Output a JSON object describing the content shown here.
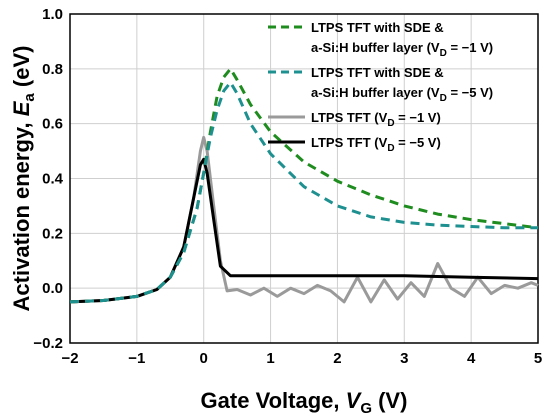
{
  "chart_data": {
    "type": "line",
    "xlabel": {
      "text": "Gate Voltage, ",
      "var": "V",
      "sub": "G",
      "unit": " (V)"
    },
    "ylabel": {
      "text": "Activation energy, ",
      "var": "E",
      "sub": "a",
      "unit": " (eV)"
    },
    "xlim": [
      -2,
      5
    ],
    "ylim": [
      -0.2,
      1.0
    ],
    "xticks": [
      -2,
      -1,
      0,
      1,
      2,
      3,
      4,
      5
    ],
    "yticks": [
      -0.2,
      0.0,
      0.2,
      0.4,
      0.6,
      0.8,
      1.0
    ],
    "xtick_labels": [
      "−2",
      "−1",
      "0",
      "1",
      "2",
      "3",
      "4",
      "5"
    ],
    "ytick_labels": [
      "−0.2",
      "0.0",
      "0.2",
      "0.4",
      "0.6",
      "0.8",
      "1.0"
    ],
    "grid": true,
    "legend_position": "top-right",
    "series": [
      {
        "legend_line1": "LTPS TFT with SDE &",
        "legend_line2": "a-Si:H buffer layer (V",
        "legend_sub": "D",
        "legend_tail": " = −1 V)",
        "color": "#1e8c1e",
        "style": "dashed",
        "x": [
          -2.0,
          -1.5,
          -1.0,
          -0.7,
          -0.5,
          -0.3,
          -0.1,
          0.0,
          0.1,
          0.2,
          0.3,
          0.4,
          0.5,
          0.7,
          1.0,
          1.5,
          2.0,
          2.5,
          3.0,
          3.5,
          4.0,
          4.5,
          5.0
        ],
        "y": [
          -0.05,
          -0.045,
          -0.03,
          -0.005,
          0.04,
          0.13,
          0.29,
          0.42,
          0.57,
          0.7,
          0.77,
          0.8,
          0.76,
          0.67,
          0.57,
          0.46,
          0.39,
          0.34,
          0.3,
          0.27,
          0.25,
          0.235,
          0.22
        ]
      },
      {
        "legend_line1": "LTPS TFT with SDE &",
        "legend_line2": "a-Si:H buffer layer (V",
        "legend_sub": "D",
        "legend_tail": " = −5 V)",
        "color": "#1e9090",
        "style": "dashed",
        "x": [
          -2.0,
          -1.5,
          -1.0,
          -0.7,
          -0.5,
          -0.3,
          -0.1,
          0.0,
          0.1,
          0.2,
          0.3,
          0.4,
          0.5,
          0.7,
          1.0,
          1.5,
          2.0,
          2.5,
          3.0,
          3.5,
          4.0,
          4.5,
          5.0
        ],
        "y": [
          -0.05,
          -0.045,
          -0.03,
          -0.005,
          0.04,
          0.13,
          0.29,
          0.42,
          0.55,
          0.65,
          0.72,
          0.75,
          0.71,
          0.6,
          0.49,
          0.37,
          0.3,
          0.26,
          0.24,
          0.23,
          0.225,
          0.22,
          0.22
        ]
      },
      {
        "legend_line1": "LTPS TFT  (V",
        "legend_sub": "D",
        "legend_tail": " = −1 V)",
        "color": "#9a9a9a",
        "style": "solid",
        "x": [
          -2.0,
          -1.5,
          -1.0,
          -0.7,
          -0.5,
          -0.3,
          -0.15,
          -0.05,
          0.0,
          0.05,
          0.15,
          0.25,
          0.35,
          0.5,
          0.7,
          0.9,
          1.1,
          1.3,
          1.5,
          1.7,
          1.9,
          2.1,
          2.3,
          2.5,
          2.7,
          2.9,
          3.1,
          3.3,
          3.5,
          3.7,
          3.9,
          4.1,
          4.3,
          4.5,
          4.7,
          4.9,
          5.0
        ],
        "y": [
          -0.05,
          -0.045,
          -0.03,
          -0.005,
          0.04,
          0.15,
          0.33,
          0.5,
          0.55,
          0.5,
          0.3,
          0.1,
          -0.01,
          -0.005,
          -0.025,
          0.0,
          -0.03,
          0.0,
          -0.02,
          0.01,
          -0.01,
          -0.05,
          0.04,
          -0.05,
          0.03,
          -0.04,
          0.02,
          -0.03,
          0.09,
          0.0,
          -0.03,
          0.04,
          -0.02,
          0.01,
          0.0,
          0.02,
          0.01
        ]
      },
      {
        "legend_line1": "LTPS TFT  (V",
        "legend_sub": "D",
        "legend_tail": " = −5 V)",
        "color": "#000000",
        "style": "solid",
        "x": [
          -2.0,
          -1.5,
          -1.0,
          -0.7,
          -0.5,
          -0.3,
          -0.15,
          -0.05,
          0.0,
          0.05,
          0.15,
          0.25,
          0.4,
          0.6,
          1.0,
          2.0,
          3.0,
          4.0,
          5.0
        ],
        "y": [
          -0.05,
          -0.045,
          -0.03,
          -0.005,
          0.04,
          0.15,
          0.33,
          0.45,
          0.47,
          0.42,
          0.25,
          0.08,
          0.045,
          0.045,
          0.045,
          0.045,
          0.045,
          0.04,
          0.035
        ]
      }
    ]
  }
}
